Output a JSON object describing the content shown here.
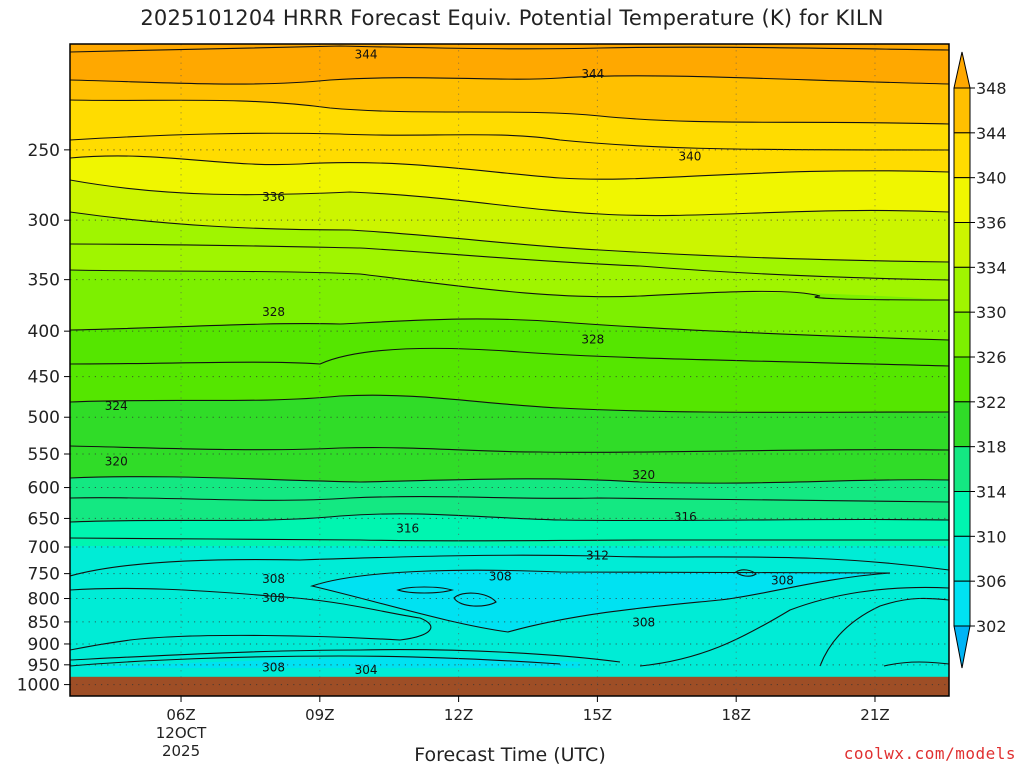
{
  "page": {
    "title": "2025101204 HRRR Forecast Equiv. Potential Temperature (K) for KILN",
    "credit": "coolwx.com/models"
  },
  "chart_data": {
    "type": "heatmap",
    "title": "2025101204 HRRR Forecast Equiv. Potential Temperature (K) for KILN",
    "xlabel": "Forecast Time (UTC)",
    "ylabel": "",
    "x_range_hours": [
      3.6,
      22.6
    ],
    "x_ticks": [
      {
        "hour": 6,
        "lines": [
          "06Z",
          "12OCT",
          "2025"
        ]
      },
      {
        "hour": 9,
        "lines": [
          "09Z"
        ]
      },
      {
        "hour": 12,
        "lines": [
          "12Z"
        ]
      },
      {
        "hour": 15,
        "lines": [
          "15Z"
        ]
      },
      {
        "hour": 18,
        "lines": [
          "18Z"
        ]
      },
      {
        "hour": 21,
        "lines": [
          "21Z"
        ]
      }
    ],
    "y_scale": "log",
    "y_range": [
      1030,
      190
    ],
    "y_ticks": [
      250,
      300,
      350,
      400,
      450,
      500,
      550,
      600,
      650,
      700,
      750,
      800,
      850,
      900,
      950,
      1000
    ],
    "surface_pressure": 980,
    "grid": true,
    "colorbar": {
      "labels": [
        348,
        344,
        340,
        336,
        334,
        330,
        326,
        322,
        318,
        314,
        310,
        306,
        302
      ],
      "bands": [
        {
          "lo": 348,
          "hi": 352,
          "color": "#ffa800"
        },
        {
          "lo": 344,
          "hi": 348,
          "color": "#ffc000"
        },
        {
          "lo": 340,
          "hi": 344,
          "color": "#ffdc00"
        },
        {
          "lo": 336,
          "hi": 340,
          "color": "#f0f600"
        },
        {
          "lo": 334,
          "hi": 336,
          "color": "#ccf500"
        },
        {
          "lo": 330,
          "hi": 334,
          "color": "#a0f500"
        },
        {
          "lo": 326,
          "hi": 330,
          "color": "#7df000"
        },
        {
          "lo": 322,
          "hi": 326,
          "color": "#55e600"
        },
        {
          "lo": 318,
          "hi": 322,
          "color": "#30dc28"
        },
        {
          "lo": 314,
          "hi": 318,
          "color": "#14e882"
        },
        {
          "lo": 310,
          "hi": 314,
          "color": "#00f5b0"
        },
        {
          "lo": 306,
          "hi": 310,
          "color": "#00ecd6"
        },
        {
          "lo": 302,
          "hi": 306,
          "color": "#00e2f2"
        },
        {
          "lo": 298,
          "hi": 302,
          "color": "#00b4f5"
        }
      ]
    },
    "contour_labels": [
      {
        "value": "344",
        "hour": 10.0,
        "p": 195
      },
      {
        "value": "344",
        "hour": 14.9,
        "p": 205
      },
      {
        "value": "340",
        "hour": 17.0,
        "p": 254
      },
      {
        "value": "336",
        "hour": 8.0,
        "p": 282
      },
      {
        "value": "328",
        "hour": 8.0,
        "p": 380
      },
      {
        "value": "328",
        "hour": 14.9,
        "p": 408
      },
      {
        "value": "324",
        "hour": 4.6,
        "p": 485
      },
      {
        "value": "320",
        "hour": 4.6,
        "p": 560
      },
      {
        "value": "320",
        "hour": 16.0,
        "p": 580
      },
      {
        "value": "316",
        "hour": 10.9,
        "p": 666
      },
      {
        "value": "316",
        "hour": 16.9,
        "p": 647
      },
      {
        "value": "312",
        "hour": 15.0,
        "p": 715
      },
      {
        "value": "308",
        "hour": 8.0,
        "p": 760
      },
      {
        "value": "308",
        "hour": 8.0,
        "p": 798
      },
      {
        "value": "308",
        "hour": 12.9,
        "p": 755
      },
      {
        "value": "308",
        "hour": 19.0,
        "p": 762
      },
      {
        "value": "308",
        "hour": 16.0,
        "p": 850
      },
      {
        "value": "308",
        "hour": 8.0,
        "p": 955
      },
      {
        "value": "304",
        "hour": 10.0,
        "p": 962
      }
    ]
  }
}
